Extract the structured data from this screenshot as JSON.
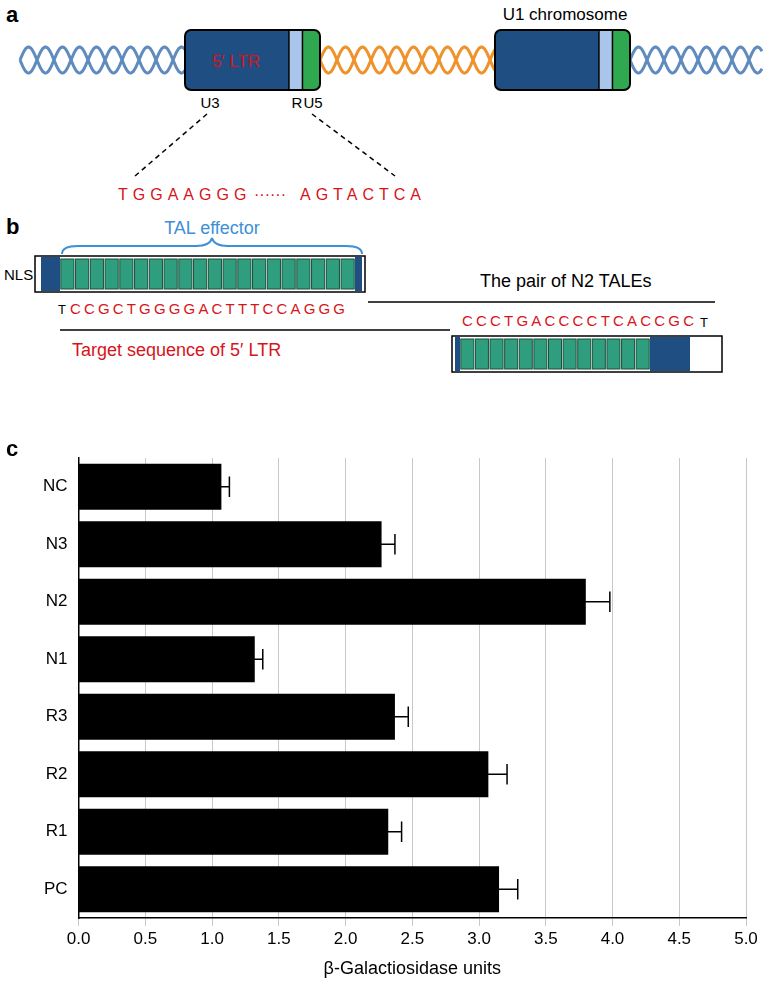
{
  "panels": {
    "a": {
      "label": "a",
      "ltr_label": "5′ LTR",
      "regions": [
        "U3",
        "R",
        "U5"
      ],
      "chromosome_label": "U1 chromosome",
      "sequence_start": "TGGAAGGG",
      "sequence_gap": "······",
      "sequence_end": "AGTACTCA"
    },
    "b": {
      "label": "b",
      "nls": "NLS",
      "tal_effector": "TAL effector",
      "pair_label": "The pair of N2 TALEs",
      "target_label": "Target sequence of 5′ LTR",
      "top": {
        "flank": "T",
        "sequence": "CCGCTGGGGACTTTCCAGGG"
      },
      "bottom": {
        "sequence": "CCCTGACCCCTCACCGC",
        "flank": "T"
      }
    },
    "c": {
      "label": "c"
    }
  },
  "chart_data": {
    "type": "bar",
    "orientation": "horizontal",
    "categories": [
      "NC",
      "N3",
      "N2",
      "N1",
      "R3",
      "R2",
      "R1",
      "PC"
    ],
    "values": [
      1.07,
      2.27,
      3.8,
      1.32,
      2.37,
      3.07,
      2.32,
      3.15
    ],
    "errors": [
      0.06,
      0.1,
      0.18,
      0.06,
      0.1,
      0.14,
      0.1,
      0.14
    ],
    "color": "#000000",
    "x_label": "β-Galactiosidase units",
    "xlim": [
      0,
      5
    ],
    "xticks": [
      {
        "value": 0,
        "label": "0.0"
      },
      0.5,
      {
        "value": 1,
        "label": "1.0"
      },
      1.5,
      {
        "value": 2,
        "label": "2.0"
      },
      2.5,
      {
        "value": 3,
        "label": "3.0"
      },
      3.5,
      {
        "value": 4,
        "label": "4.0"
      },
      4.5,
      {
        "value": 5,
        "label": "5.0"
      }
    ],
    "grid": true
  }
}
